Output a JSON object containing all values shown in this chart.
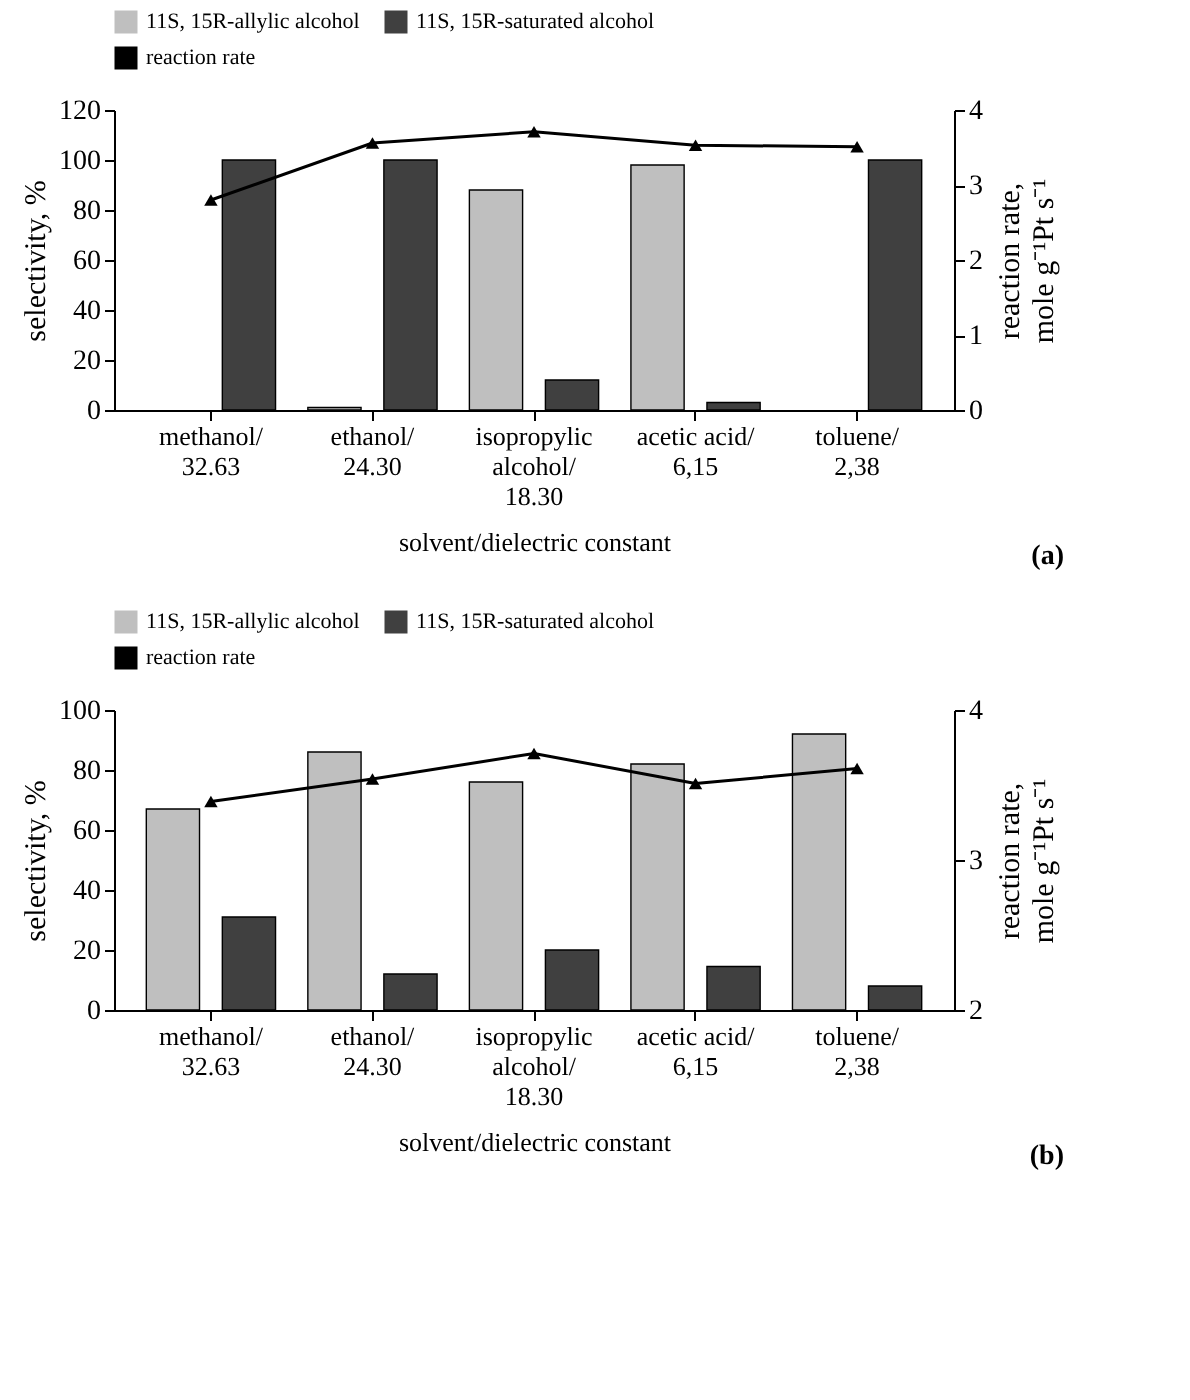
{
  "chart_data": [
    {
      "type": "bar",
      "categories": [
        "methanol/\n32.63",
        "ethanol/\n24.30",
        "isopropylic\nalcohol/\n18.30",
        "acetic acid/\n6,15",
        "toluene/\n2,38"
      ],
      "xlabel": "solvent/dielectric constant",
      "ylabel": "selectivity, %",
      "y2label": "reaction rate,\nmole g⁻¹Pt s⁻¹",
      "ylim": [
        0,
        120
      ],
      "yticks": [
        0,
        20,
        40,
        60,
        80,
        100,
        120
      ],
      "y2lim": [
        0,
        4
      ],
      "y2ticks": [
        0,
        1,
        2,
        3,
        4
      ],
      "legend": "top",
      "grid": false,
      "annotations": [
        "(a)"
      ],
      "series": [
        {
          "name": "11S, 15R-allylic alcohol",
          "color": "#bfbfbf",
          "values": [
            null,
            1,
            88,
            98,
            null
          ]
        },
        {
          "name": "11S, 15R-saturated alcohol",
          "color": "#404040",
          "values": [
            100,
            100,
            12,
            3,
            100
          ]
        },
        {
          "name": "reaction rate",
          "type": "line",
          "axis": "y2",
          "color": "#000000",
          "marker": "triangle",
          "line_style": "solid",
          "values": [
            2.8,
            3.56,
            3.71,
            3.53,
            3.51
          ]
        }
      ]
    },
    {
      "type": "bar",
      "categories": [
        "methanol/\n32.63",
        "ethanol/\n24.30",
        "isopropylic\nalcohol/\n18.30",
        "acetic acid/\n6,15",
        "toluene/\n2,38"
      ],
      "xlabel": "solvent/dielectric constant",
      "ylabel": "selectivity, %",
      "y2label": "reaction rate,\nmole g⁻¹Pt s⁻¹",
      "ylim": [
        0,
        100
      ],
      "yticks": [
        0,
        20,
        40,
        60,
        80,
        100
      ],
      "y2lim": [
        2,
        4
      ],
      "y2ticks": [
        2,
        3,
        4
      ],
      "legend": "top",
      "grid": false,
      "annotations": [
        "(b)"
      ],
      "series": [
        {
          "name": "11S, 15R-allylic alcohol",
          "color": "#bfbfbf",
          "values": [
            67,
            86,
            76,
            82,
            92
          ]
        },
        {
          "name": "11S, 15R-saturated alcohol",
          "color": "#404040",
          "values": [
            31,
            12,
            20,
            14.5,
            8
          ]
        },
        {
          "name": "reaction rate",
          "type": "line",
          "axis": "y2",
          "color": "#000000",
          "marker": "triangle",
          "line_style": "solid",
          "values": [
            3.39,
            3.54,
            3.71,
            3.51,
            3.61
          ]
        }
      ]
    }
  ]
}
